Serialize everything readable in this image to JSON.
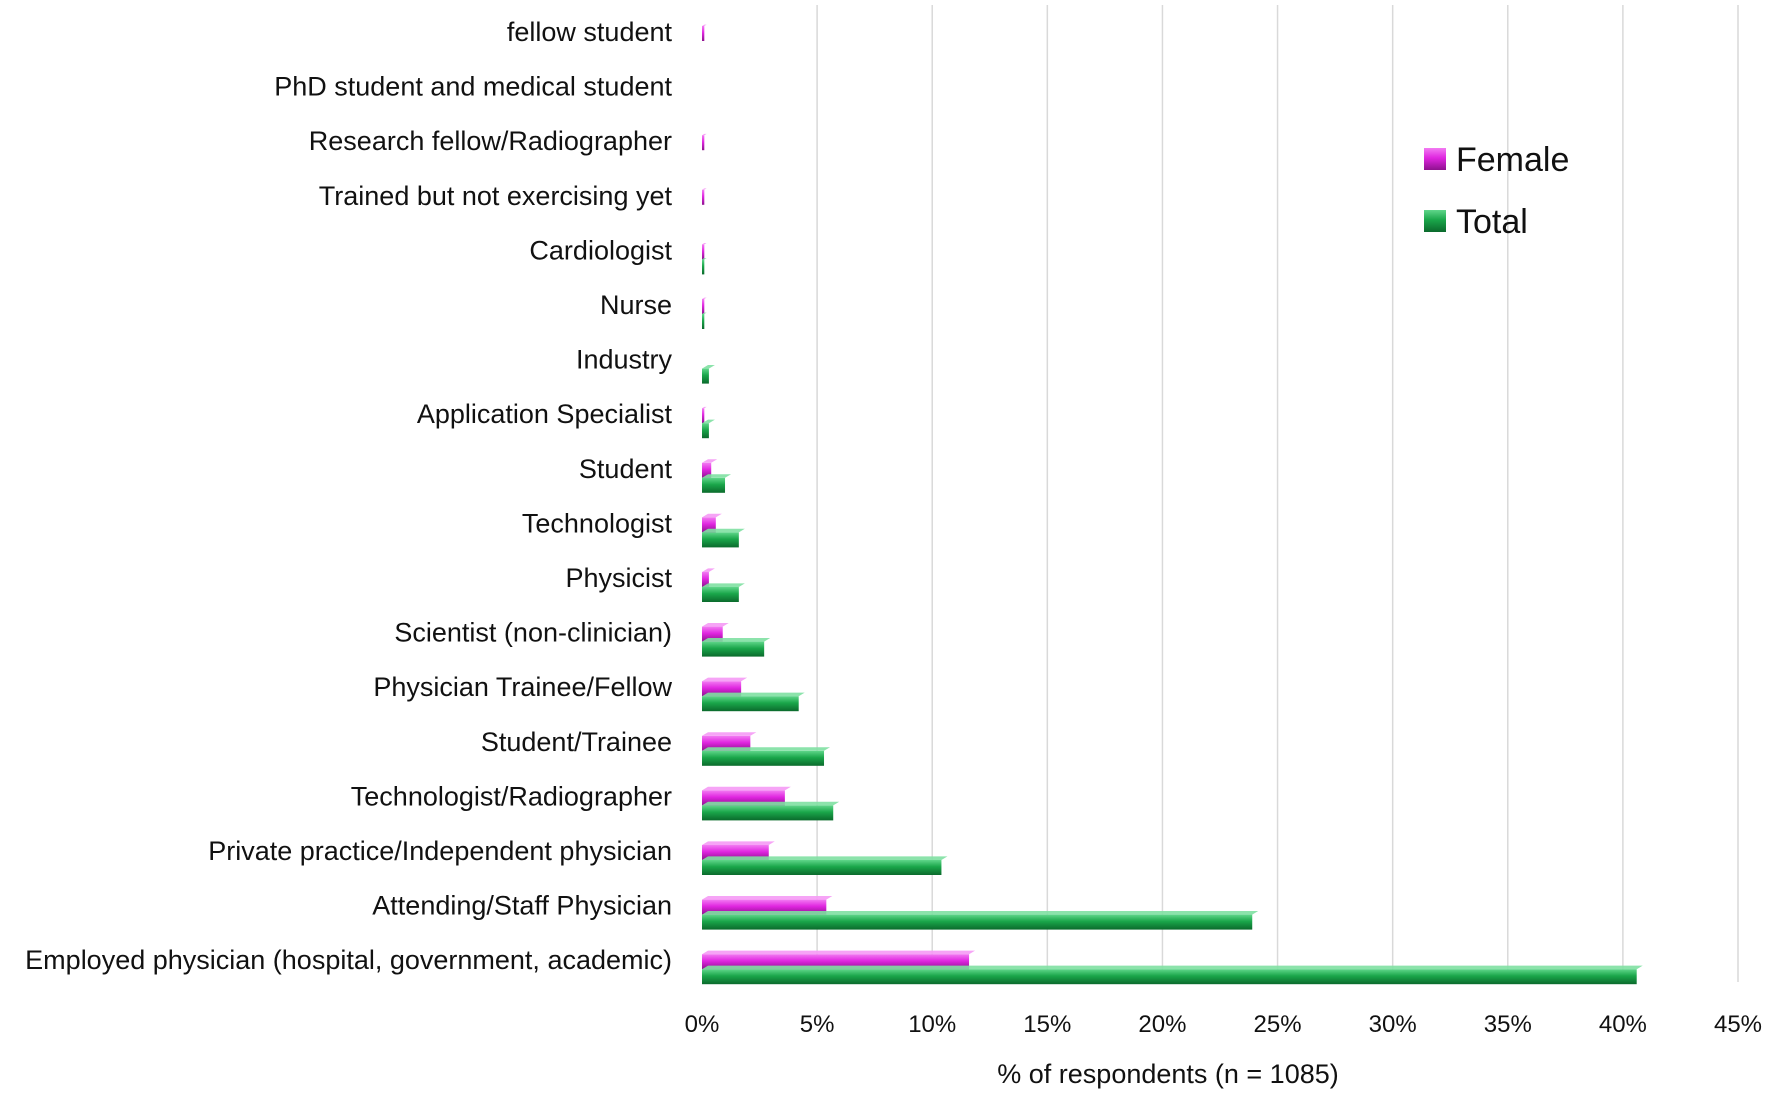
{
  "chart_data": {
    "type": "bar",
    "orientation": "horizontal",
    "title": "",
    "xlabel": "% of respondents (n = 1085)",
    "ylabel": "",
    "xlim": [
      0,
      45
    ],
    "xticks": [
      "0%",
      "5%",
      "10%",
      "15%",
      "20%",
      "25%",
      "30%",
      "35%",
      "40%",
      "45%"
    ],
    "grid": true,
    "legend_position": "top-right",
    "categories": [
      "fellow student",
      "PhD student and medical student",
      "Research fellow/Radiographer",
      "Trained but not exercising yet",
      "Cardiologist",
      "Nurse",
      "Industry",
      "Application Specialist",
      "Student",
      "Technologist",
      "Physicist",
      "Scientist (non-clinician)",
      "Physician Trainee/Fellow",
      "Student/Trainee",
      "Technologist/Radiographer",
      "Private practice/Independent physician",
      "Attending/Staff Physician",
      "Employed physician (hospital, government, academic)"
    ],
    "series": [
      {
        "name": "Female",
        "color": "#e026e0",
        "values": [
          0.1,
          0.0,
          0.1,
          0.1,
          0.1,
          0.1,
          0.0,
          0.1,
          0.4,
          0.6,
          0.3,
          0.9,
          1.7,
          2.1,
          3.6,
          2.9,
          5.4,
          11.6
        ]
      },
      {
        "name": "Total",
        "color": "#1aa64a",
        "values": [
          0.0,
          0.0,
          0.0,
          0.0,
          0.1,
          0.1,
          0.3,
          0.3,
          1.0,
          1.6,
          1.6,
          2.7,
          4.2,
          5.3,
          5.7,
          10.4,
          23.9,
          40.6
        ]
      }
    ]
  }
}
